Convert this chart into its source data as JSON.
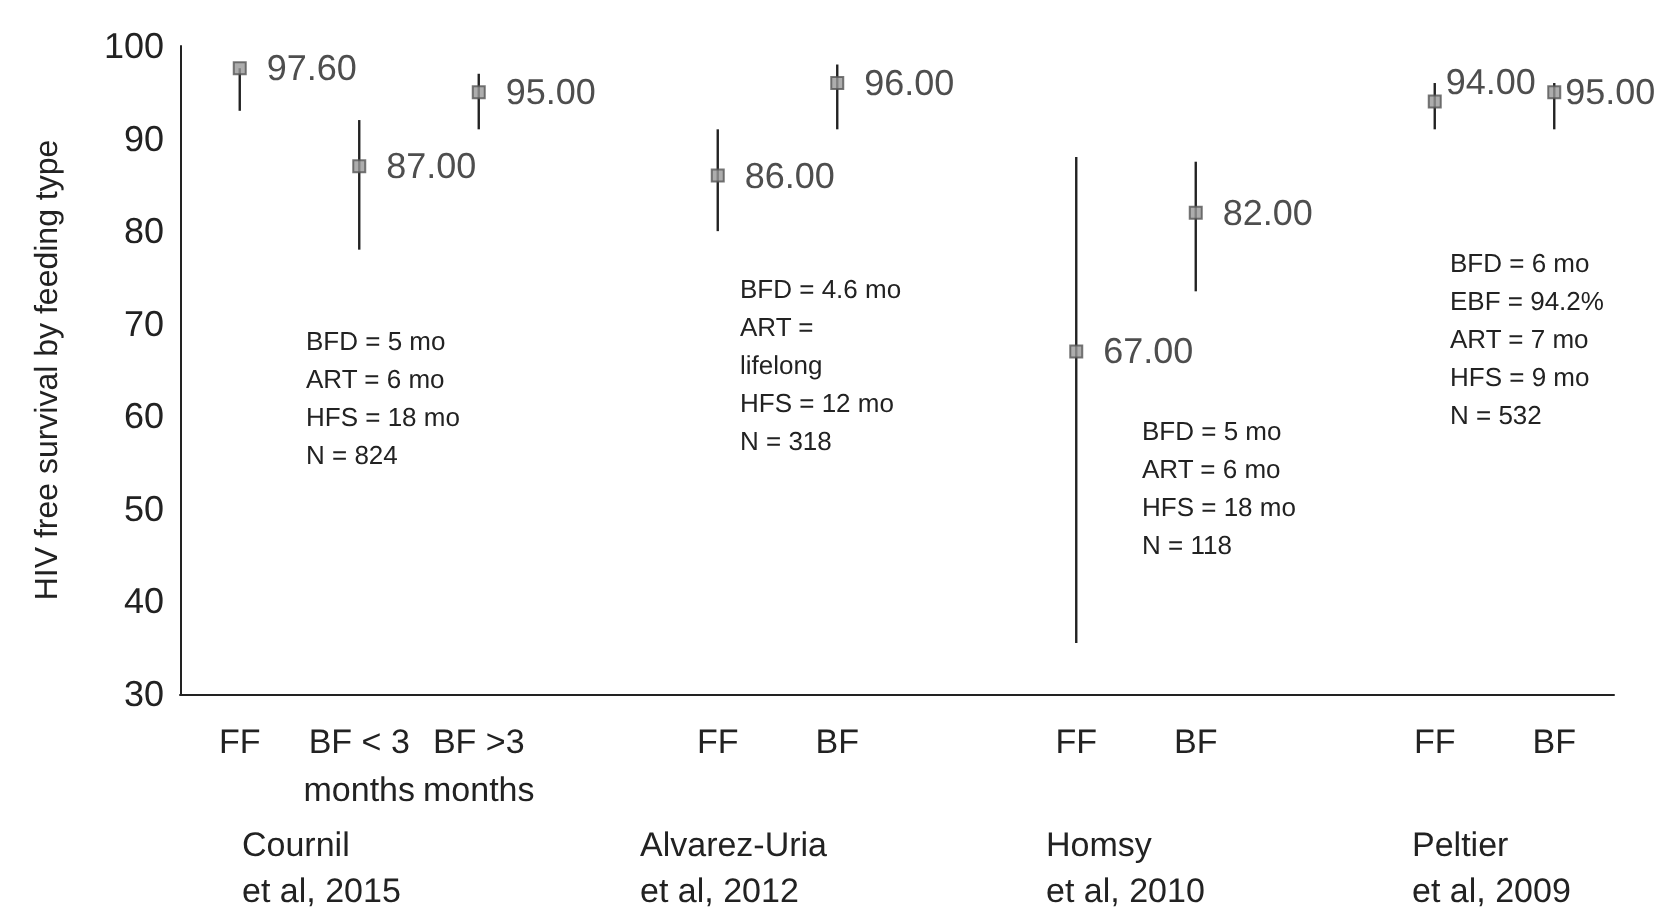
{
  "chart_data": {
    "type": "scatter",
    "ylabel": "HIV free survival by feeding type",
    "categories": [
      "FF",
      "BF < 3\nmonths",
      "BF >3\nmonths",
      null,
      "FF",
      "BF",
      null,
      "FF",
      "BF",
      null,
      "FF",
      "BF"
    ],
    "values": [
      97.6,
      87,
      95,
      null,
      86,
      96,
      null,
      67,
      82,
      null,
      94,
      95
    ],
    "value_labels": [
      "97.60",
      "87.00",
      "95.00",
      null,
      "86.00",
      "96.00",
      null,
      "67.00",
      "82.00",
      null,
      "94.00",
      "95.00"
    ],
    "errors": [
      [
        93,
        97.6
      ],
      [
        78,
        92
      ],
      [
        91,
        97
      ],
      null,
      [
        80,
        91
      ],
      [
        91,
        98
      ],
      null,
      [
        35.5,
        88
      ],
      [
        73.5,
        87.5
      ],
      null,
      [
        91,
        96
      ],
      [
        91,
        96
      ]
    ],
    "color": "#999999",
    "marker": "square",
    "ylim": [
      30,
      100
    ],
    "yticks": [
      30,
      40,
      50,
      60,
      70,
      80,
      90,
      100
    ],
    "annotations": [
      "BFD = 5 mo\nART = 6 mo\nHFS = 18 mo\nN = 824",
      "BFD = 4.6 mo\nART =\nlifelong\nHFS = 12 mo\nN = 318",
      "BFD = 5 mo\nART = 6 mo\nHFS = 18 mo\nN = 118",
      "BFD = 6 mo\nEBF = 94.2%\nART = 7 mo\nHFS = 9 mo\nN = 532",
      "Cournil\net al, 2015",
      "Alvarez-Uria\net al, 2012",
      "Homsy\net al, 2010",
      "Peltier\net al, 2009"
    ]
  }
}
